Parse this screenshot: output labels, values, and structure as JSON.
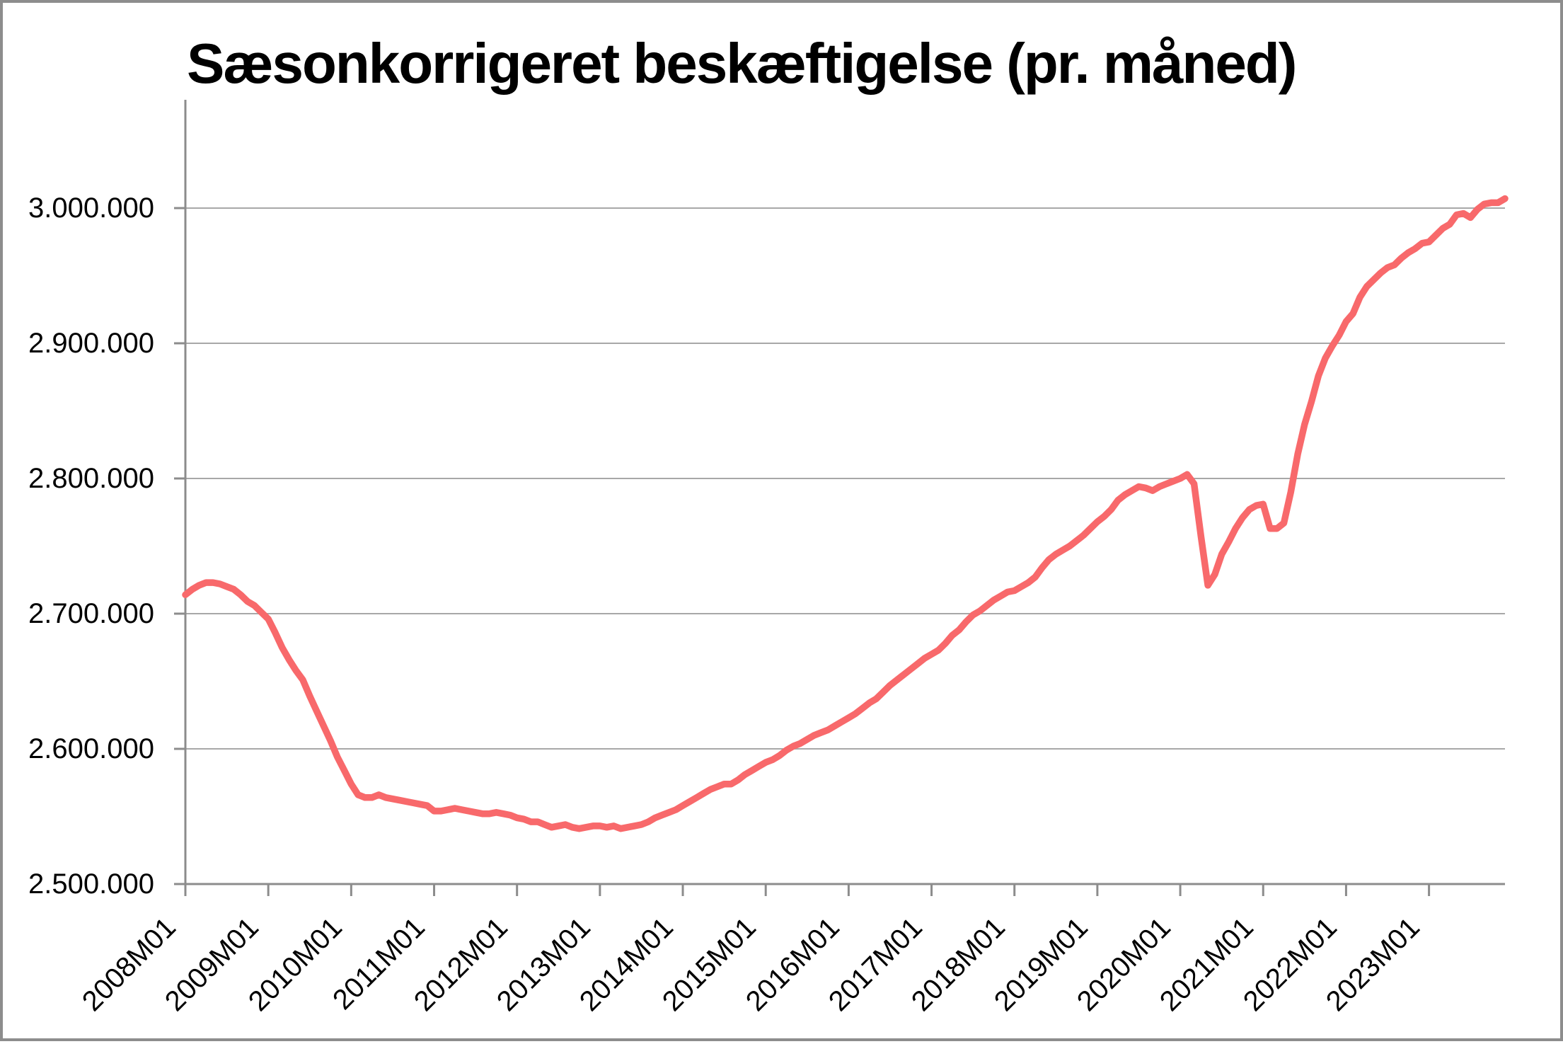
{
  "title": "Sæsonkorrigeret beskæftigelse (pr. måned)",
  "colors": {
    "line": "#f8696b",
    "gridline": "#a8a8a8",
    "axis": "#8c8c8c",
    "frame": "#8d8d8d",
    "text": "#000000",
    "background": "#ffffff"
  },
  "chart_data": {
    "type": "line",
    "title": "Sæsonkorrigeret beskæftigelse (pr. måned)",
    "xlabel": "",
    "ylabel": "",
    "x_start": "2008M01",
    "x_end": "2023M12",
    "x_frequency": "monthly",
    "x_tick_labels": [
      "2008M01",
      "2009M01",
      "2010M01",
      "2011M01",
      "2012M01",
      "2013M01",
      "2014M01",
      "2015M01",
      "2016M01",
      "2017M01",
      "2018M01",
      "2019M01",
      "2020M01",
      "2021M01",
      "2022M01",
      "2023M01"
    ],
    "y_tick_labels": [
      "3.000.000",
      "2.900.000",
      "2.800.000",
      "2.700.000",
      "2.600.000",
      "2.500.000"
    ],
    "y_ticks": [
      3000000,
      2900000,
      2800000,
      2700000,
      2600000,
      2500000
    ],
    "ylim": [
      2500000,
      3000000
    ],
    "grid": "horizontal",
    "legend": "none",
    "series": [
      {
        "name": "Sæsonkorrigeret beskæftigelse",
        "values": [
          2714000,
          2718000,
          2721000,
          2723000,
          2723000,
          2722000,
          2720000,
          2718000,
          2714000,
          2709000,
          2706000,
          2701000,
          2696000,
          2686000,
          2675000,
          2666000,
          2658000,
          2651000,
          2639000,
          2628000,
          2617000,
          2606000,
          2594000,
          2584000,
          2574000,
          2566000,
          2564000,
          2564000,
          2566000,
          2564000,
          2563000,
          2562000,
          2561000,
          2560000,
          2559000,
          2558000,
          2554000,
          2554000,
          2555000,
          2556000,
          2555000,
          2554000,
          2553000,
          2552000,
          2552000,
          2553000,
          2552000,
          2551000,
          2549000,
          2548000,
          2546000,
          2546000,
          2544000,
          2542000,
          2543000,
          2544000,
          2542000,
          2541000,
          2542000,
          2543000,
          2543000,
          2542000,
          2543000,
          2541000,
          2542000,
          2543000,
          2544000,
          2546000,
          2549000,
          2551000,
          2553000,
          2555000,
          2558000,
          2561000,
          2564000,
          2567000,
          2570000,
          2572000,
          2574000,
          2574000,
          2577000,
          2581000,
          2584000,
          2587000,
          2590000,
          2592000,
          2595000,
          2599000,
          2602000,
          2604000,
          2607000,
          2610000,
          2612000,
          2614000,
          2617000,
          2620000,
          2623000,
          2626000,
          2630000,
          2634000,
          2637000,
          2642000,
          2647000,
          2651000,
          2655000,
          2659000,
          2663000,
          2667000,
          2670000,
          2673000,
          2678000,
          2684000,
          2688000,
          2694000,
          2699000,
          2702000,
          2706000,
          2710000,
          2713000,
          2716000,
          2717000,
          2720000,
          2723000,
          2727000,
          2734000,
          2740000,
          2744000,
          2747000,
          2750000,
          2754000,
          2758000,
          2763000,
          2768000,
          2772000,
          2777000,
          2784000,
          2788000,
          2791000,
          2794000,
          2793000,
          2791000,
          2794000,
          2796000,
          2798000,
          2800000,
          2803000,
          2796000,
          2757000,
          2721000,
          2729000,
          2744000,
          2753000,
          2763000,
          2771000,
          2777000,
          2780000,
          2781000,
          2763000,
          2763000,
          2767000,
          2790000,
          2818000,
          2840000,
          2857000,
          2876000,
          2889000,
          2898000,
          2906000,
          2916000,
          2922000,
          2934000,
          2942000,
          2947000,
          2952000,
          2956000,
          2958000,
          2963000,
          2967000,
          2970000,
          2974000,
          2975000,
          2980000,
          2985000,
          2988000,
          2995000,
          2996000,
          2993000,
          2999000,
          3003000,
          3004000,
          3004000,
          3007000
        ]
      }
    ]
  }
}
